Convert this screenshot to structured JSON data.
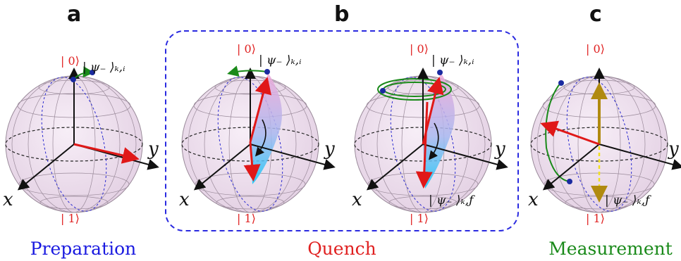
{
  "panels": [
    {
      "letter": "a",
      "caption": "Preparation",
      "caption_color": "#1a1ae0"
    },
    {
      "letter": "b",
      "caption": "Quench",
      "caption_color": "#e02020"
    },
    {
      "letter": "c",
      "caption": "Measurement",
      "caption_color": "#1a8a1a"
    }
  ],
  "labels": {
    "ket0": "| 0⟩",
    "ket1": "| 1⟩",
    "psi_i": "| ψ₋ ⟩ₖ,ᵢ",
    "psi_f": "| ψ₋ ⟩ₖ,ƒ",
    "axis_x": "x",
    "axis_y": "y"
  },
  "colors": {
    "sphere_fill": "#eeddee",
    "grid": "#9a8a9a",
    "equator": "#222222",
    "meridian_blue": "#2a2ad0",
    "red_arrow": "#e01818",
    "green_orbit": "#1a8a1a",
    "gold_arrow": "#b08a10",
    "yellow_dashed": "#f0e020",
    "dashed_frame": "#2a2ae0",
    "cyan_wedge": "#20c8f0",
    "pink_wedge": "#f0a0d0"
  }
}
